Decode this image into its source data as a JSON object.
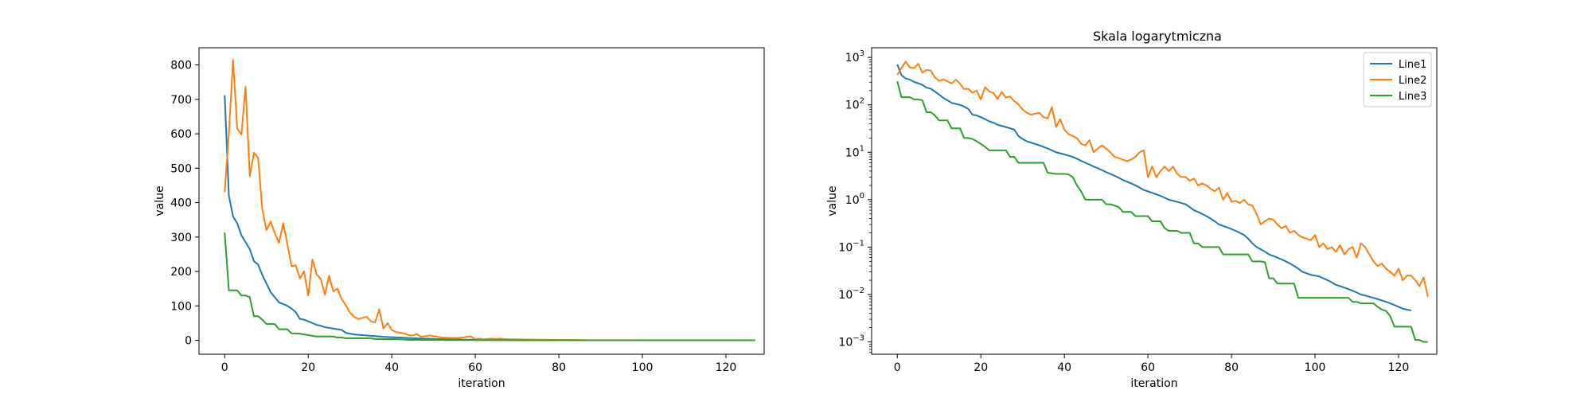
{
  "chart_data": [
    {
      "type": "line",
      "title": "",
      "xlabel": "iteration",
      "ylabel": "value",
      "yscale": "linear",
      "xlim": [
        -6.15,
        129.15
      ],
      "ylim": [
        -40.5,
        850
      ],
      "grid": false,
      "xticks": [
        0,
        20,
        40,
        60,
        80,
        100,
        120
      ],
      "yticks": [
        0,
        100,
        200,
        300,
        400,
        500,
        600,
        700,
        800
      ],
      "x_start": 0,
      "series": [
        {
          "color": "#1f77b4",
          "values": [
            712,
            420,
            360,
            340,
            305,
            285,
            265,
            230,
            220,
            190,
            165,
            140,
            125,
            110,
            105,
            100,
            92,
            82,
            62,
            60,
            55,
            50,
            45,
            42,
            38,
            36,
            34,
            32,
            30,
            22,
            19,
            17,
            16,
            15,
            14,
            13,
            12,
            11,
            10,
            9.5,
            9,
            8.5,
            8,
            7.3,
            6.6,
            6,
            5.5,
            5,
            4.6,
            4.2,
            3.8,
            3.5,
            3.2,
            2.9,
            2.6,
            2.4,
            2.2,
            2,
            1.8,
            1.6,
            1.5,
            1.4,
            1.3,
            1.2,
            1.1,
            1,
            0.95,
            0.9,
            0.85,
            0.8,
            0.7,
            0.6,
            0.55,
            0.5,
            0.45,
            0.4,
            0.35,
            0.3,
            0.28,
            0.26,
            0.24,
            0.22,
            0.2,
            0.18,
            0.15,
            0.12,
            0.1,
            0.09,
            0.08,
            0.07,
            0.065,
            0.06,
            0.055,
            0.05,
            0.045,
            0.04,
            0.035,
            0.03,
            0.028,
            0.026,
            0.025,
            0.024,
            0.022,
            0.02,
            0.018,
            0.016,
            0.015,
            0.014,
            0.013,
            0.012,
            0.011,
            0.01,
            0.0095,
            0.009,
            0.0085,
            0.008,
            0.0075,
            0.007,
            0.0065,
            0.006,
            0.0055,
            0.005,
            0.0048,
            0.0046
          ]
        },
        {
          "color": "#ff7f0e",
          "values": [
            430,
            600,
            815,
            615,
            598,
            737,
            477,
            545,
            530,
            380,
            320,
            345,
            312,
            283,
            340,
            280,
            215,
            218,
            180,
            200,
            130,
            235,
            192,
            178,
            132,
            188,
            142,
            150,
            120,
            102,
            80,
            68,
            62,
            65,
            68,
            55,
            52,
            90,
            34,
            50,
            30,
            24,
            22,
            20,
            15,
            14,
            18,
            10,
            12,
            14,
            12,
            10,
            8,
            7.5,
            7,
            6.5,
            7,
            8,
            10,
            11,
            3,
            5,
            3,
            4,
            5,
            4,
            5,
            3.5,
            3,
            3,
            2.5,
            2.8,
            2,
            2.2,
            2,
            1.7,
            1.5,
            1.8,
            1,
            1.4,
            0.9,
            0.95,
            0.85,
            1,
            0.8,
            0.75,
            0.5,
            0.3,
            0.35,
            0.4,
            0.38,
            0.3,
            0.25,
            0.28,
            0.2,
            0.22,
            0.18,
            0.16,
            0.15,
            0.14,
            0.18,
            0.1,
            0.12,
            0.09,
            0.1,
            0.08,
            0.11,
            0.07,
            0.09,
            0.1,
            0.06,
            0.12,
            0.1,
            0.07,
            0.05,
            0.04,
            0.045,
            0.035,
            0.03,
            0.025,
            0.035,
            0.02,
            0.025,
            0.025,
            0.02,
            0.015,
            0.023,
            0.009
          ]
        },
        {
          "color": "#2ca02c",
          "values": [
            313,
            145,
            145,
            145,
            130,
            130,
            125,
            70,
            70,
            60,
            47,
            47,
            47,
            32,
            32,
            32,
            20,
            20,
            19,
            17,
            15,
            13,
            11,
            11,
            11,
            11,
            11,
            8,
            8,
            6,
            6,
            6,
            6,
            6,
            6,
            6,
            3.7,
            3.6,
            3.5,
            3.5,
            3.5,
            3.4,
            3,
            2,
            1.5,
            1,
            1,
            1,
            1,
            1,
            0.8,
            0.8,
            0.75,
            0.7,
            0.55,
            0.55,
            0.55,
            0.45,
            0.45,
            0.45,
            0.45,
            0.35,
            0.35,
            0.35,
            0.25,
            0.22,
            0.22,
            0.22,
            0.2,
            0.2,
            0.2,
            0.12,
            0.12,
            0.1,
            0.1,
            0.1,
            0.1,
            0.1,
            0.07,
            0.07,
            0.07,
            0.07,
            0.07,
            0.07,
            0.07,
            0.05,
            0.05,
            0.05,
            0.048,
            0.022,
            0.022,
            0.017,
            0.017,
            0.017,
            0.017,
            0.017,
            0.0085,
            0.0085,
            0.0085,
            0.0085,
            0.0085,
            0.0085,
            0.0085,
            0.0085,
            0.0085,
            0.0085,
            0.0085,
            0.0085,
            0.0085,
            0.007,
            0.007,
            0.0065,
            0.0065,
            0.0065,
            0.0065,
            0.0055,
            0.0048,
            0.0045,
            0.0035,
            0.0021,
            0.0021,
            0.0021,
            0.0021,
            0.0021,
            0.0011,
            0.0011,
            0.001,
            0.001
          ]
        }
      ]
    },
    {
      "type": "line",
      "title": "Skala logarytmiczna",
      "xlabel": "iteration",
      "ylabel": "value",
      "yscale": "log",
      "xlim": [
        -6.15,
        129.15
      ],
      "ylim": [
        0.00055,
        1600
      ],
      "grid": false,
      "legend_position": "top-right",
      "xticks": [
        0,
        20,
        40,
        60,
        80,
        100,
        120
      ],
      "yticks": [
        {
          "value": 0.001,
          "base": "10",
          "exp": "−3"
        },
        {
          "value": 0.01,
          "base": "10",
          "exp": "−2"
        },
        {
          "value": 0.1,
          "base": "10",
          "exp": "−1"
        },
        {
          "value": 1,
          "base": "10",
          "exp": "0"
        },
        {
          "value": 10,
          "base": "10",
          "exp": "1"
        },
        {
          "value": 100,
          "base": "10",
          "exp": "2"
        },
        {
          "value": 1000,
          "base": "10",
          "exp": "3"
        }
      ],
      "series_ref": [
        0,
        1,
        2
      ],
      "legend": [
        "Line1",
        "Line2",
        "Line3"
      ]
    }
  ]
}
